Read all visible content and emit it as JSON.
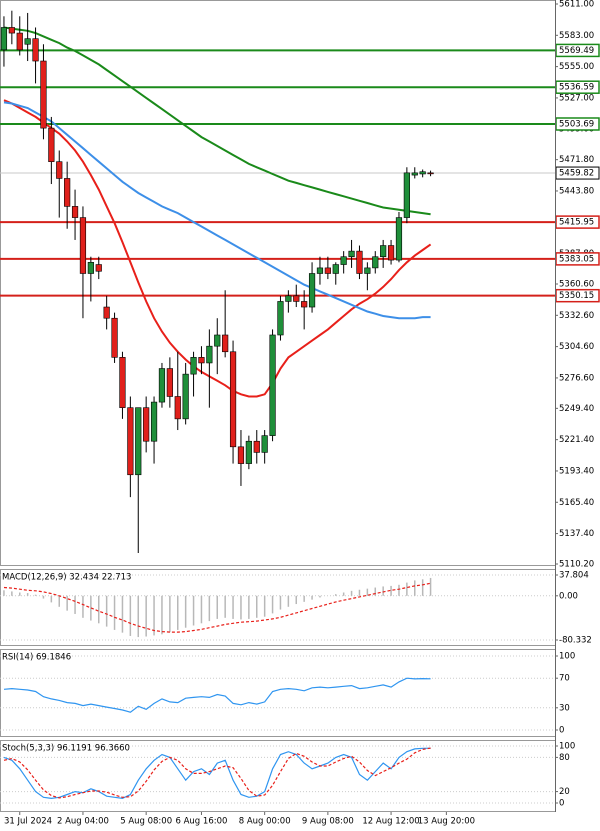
{
  "chart_data": [
    {
      "type": "candlestick",
      "ylim": [
        5110.2,
        5611
      ],
      "yticks": [
        {
          "value": 5611,
          "label": "5611.00"
        },
        {
          "value": 5583,
          "label": "5583.00"
        },
        {
          "value": 5555,
          "label": "5555.00"
        },
        {
          "value": 5527,
          "label": "5527.00"
        },
        {
          "value": 5499,
          "label": "5499.00"
        },
        {
          "value": 5471.8,
          "label": "5471.80"
        },
        {
          "value": 5443.8,
          "label": "5443.80"
        },
        {
          "value": 5387.8,
          "label": "5387.80"
        },
        {
          "value": 5360.6,
          "label": "5360.60"
        },
        {
          "value": 5332.6,
          "label": "5332.60"
        },
        {
          "value": 5304.6,
          "label": "5304.60"
        },
        {
          "value": 5276.6,
          "label": "5276.60"
        },
        {
          "value": 5249.4,
          "label": "5249.40"
        },
        {
          "value": 5221.4,
          "label": "5221.40"
        },
        {
          "value": 5193.4,
          "label": "5193.40"
        },
        {
          "value": 5165.4,
          "label": "5165.40"
        },
        {
          "value": 5137.4,
          "label": "5137.40"
        },
        {
          "value": 5110.2,
          "label": "5110.20"
        }
      ],
      "up_color": "#1f8f3a",
      "down_color": "#e0201b",
      "open": [
        5570,
        5590,
        5585,
        5575,
        5580,
        5560,
        5500,
        5470,
        5455,
        5430,
        5420,
        5370,
        5378,
        5340,
        5330,
        5295,
        5250,
        5190,
        5250,
        5220,
        5255,
        5285,
        5260,
        5240,
        5280,
        5295,
        5290,
        5305,
        5315,
        5300,
        5215,
        5200,
        5220,
        5210,
        5225,
        5315,
        5345,
        5350,
        5345,
        5340,
        5370,
        5375,
        5370,
        5378,
        5385,
        5390,
        5370,
        5375,
        5385,
        5395,
        5382,
        5420,
        5458,
        5459,
        5460
      ],
      "high": [
        5600,
        5605,
        5600,
        5603,
        5590,
        5575,
        5510,
        5480,
        5470,
        5445,
        5430,
        5385,
        5385,
        5350,
        5335,
        5300,
        5260,
        5250,
        5260,
        5260,
        5290,
        5295,
        5300,
        5290,
        5300,
        5305,
        5320,
        5330,
        5355,
        5310,
        5230,
        5225,
        5230,
        5230,
        5320,
        5350,
        5355,
        5360,
        5355,
        5380,
        5385,
        5385,
        5380,
        5390,
        5400,
        5395,
        5380,
        5390,
        5400,
        5400,
        5425,
        5465,
        5465,
        5463,
        5462
      ],
      "low": [
        5555,
        5575,
        5565,
        5560,
        5540,
        5490,
        5450,
        5420,
        5410,
        5400,
        5330,
        5345,
        5365,
        5320,
        5290,
        5240,
        5170,
        5120,
        5210,
        5200,
        5250,
        5250,
        5230,
        5235,
        5260,
        5280,
        5250,
        5280,
        5295,
        5200,
        5180,
        5195,
        5200,
        5200,
        5220,
        5310,
        5335,
        5340,
        5320,
        5335,
        5360,
        5365,
        5360,
        5370,
        5375,
        5365,
        5355,
        5370,
        5375,
        5378,
        5380,
        5415,
        5455,
        5456,
        5457
      ],
      "close": [
        5590,
        5585,
        5570,
        5580,
        5560,
        5500,
        5470,
        5455,
        5430,
        5420,
        5370,
        5380,
        5372,
        5330,
        5295,
        5250,
        5190,
        5250,
        5220,
        5255,
        5285,
        5260,
        5240,
        5280,
        5295,
        5290,
        5305,
        5315,
        5300,
        5215,
        5200,
        5220,
        5210,
        5225,
        5315,
        5345,
        5350,
        5345,
        5340,
        5370,
        5375,
        5370,
        5378,
        5385,
        5390,
        5370,
        5375,
        5385,
        5395,
        5382,
        5420,
        5460,
        5460,
        5461,
        5459.82
      ],
      "series": [
        {
          "color": "#1a8a1a",
          "values": [
            5590,
            5589,
            5588,
            5587,
            5585,
            5582,
            5579,
            5576,
            5572,
            5569,
            5565,
            5561,
            5557,
            5552,
            5547,
            5542,
            5537,
            5532,
            5527,
            5522,
            5517,
            5512,
            5507,
            5502,
            5497,
            5492,
            5488,
            5484,
            5480,
            5476,
            5472,
            5468,
            5465,
            5462,
            5459,
            5456,
            5453,
            5451,
            5449,
            5447,
            5445,
            5443,
            5441,
            5439,
            5437,
            5435,
            5433,
            5431,
            5429,
            5428,
            5427,
            5426,
            5425,
            5424,
            5423
          ]
        },
        {
          "color": "#e8201a",
          "values": [
            5525,
            5522,
            5518,
            5514,
            5510,
            5505,
            5500,
            5495,
            5488,
            5480,
            5470,
            5458,
            5445,
            5430,
            5415,
            5398,
            5380,
            5362,
            5345,
            5330,
            5318,
            5308,
            5300,
            5293,
            5287,
            5282,
            5278,
            5274,
            5270,
            5265,
            5262,
            5260,
            5260,
            5262,
            5272,
            5285,
            5295,
            5300,
            5305,
            5310,
            5315,
            5320,
            5326,
            5332,
            5338,
            5343,
            5347,
            5352,
            5358,
            5365,
            5373,
            5380,
            5386,
            5391,
            5396
          ]
        },
        {
          "color": "#3d8fe8",
          "values": [
            5523,
            5522,
            5520,
            5518,
            5514,
            5510,
            5506,
            5500,
            5494,
            5488,
            5482,
            5476,
            5470,
            5464,
            5458,
            5452,
            5447,
            5442,
            5438,
            5434,
            5430,
            5427,
            5424,
            5420,
            5416,
            5412,
            5408,
            5404,
            5400,
            5396,
            5392,
            5388,
            5384,
            5380,
            5376,
            5372,
            5368,
            5364,
            5360,
            5357,
            5354,
            5351,
            5348,
            5345,
            5342,
            5339,
            5336,
            5334,
            5332,
            5331,
            5330,
            5330,
            5330,
            5331,
            5331
          ]
        }
      ],
      "levels": [
        {
          "value": 5569.49,
          "color": "#1a8a1a"
        },
        {
          "value": 5536.59,
          "color": "#1a8a1a"
        },
        {
          "value": 5503.69,
          "color": "#1a8a1a"
        },
        {
          "value": 5415.95,
          "color": "#d4201a"
        },
        {
          "value": 5383.05,
          "color": "#d4201a"
        },
        {
          "value": 5350.15,
          "color": "#d4201a"
        }
      ],
      "current_price": 5459.82
    },
    {
      "type": "macd",
      "title": "MACD(12,26,9) 32.434 22.713",
      "ylim": [
        -80.332,
        37.804
      ],
      "yticks": [
        37.804,
        {
          "value": 0,
          "label": "0.00"
        },
        -80.332
      ],
      "series": [
        {
          "style": "histogram",
          "color": "#b8b8b8",
          "values": [
            10,
            8,
            6,
            5,
            2,
            -5,
            -12,
            -20,
            -27,
            -33,
            -40,
            -45,
            -50,
            -56,
            -62,
            -67,
            -73,
            -75,
            -74,
            -72,
            -70,
            -66,
            -62,
            -58,
            -54,
            -50,
            -46,
            -42,
            -40,
            -42,
            -43,
            -42,
            -40,
            -38,
            -32,
            -25,
            -20,
            -15,
            -11,
            -7,
            -3,
            0,
            3,
            6,
            9,
            11,
            13,
            15,
            17,
            18,
            20,
            24,
            28,
            30,
            32.434
          ]
        },
        {
          "style": "dashed",
          "color": "#e8201a",
          "values": [
            15,
            14,
            12,
            10,
            9,
            7,
            4,
            0,
            -5,
            -10,
            -16,
            -22,
            -28,
            -33,
            -39,
            -44,
            -50,
            -55,
            -59,
            -63,
            -65,
            -66,
            -66,
            -65,
            -63,
            -61,
            -58,
            -55,
            -52,
            -50,
            -48,
            -47,
            -46,
            -44,
            -42,
            -39,
            -35,
            -31,
            -27,
            -23,
            -19,
            -15,
            -11,
            -8,
            -5,
            -2,
            1,
            4,
            7,
            10,
            12,
            15,
            18,
            20,
            22.713
          ]
        }
      ]
    },
    {
      "type": "line",
      "title": "RSI(14) 69.1846",
      "ylim": [
        0,
        100
      ],
      "yticks": [
        100,
        70,
        30,
        0
      ],
      "series": [
        {
          "style": "solid",
          "color": "#2f95f0",
          "values": [
            55,
            56,
            55,
            54,
            52,
            45,
            42,
            40,
            37,
            36,
            33,
            35,
            33,
            31,
            29,
            27,
            24,
            32,
            28,
            36,
            42,
            38,
            37,
            43,
            44,
            45,
            44,
            48,
            46,
            36,
            34,
            37,
            35,
            38,
            52,
            55,
            56,
            55,
            53,
            57,
            58,
            57,
            58,
            59,
            60,
            56,
            57,
            59,
            61,
            58,
            65,
            70,
            69,
            69.5,
            69.1846
          ]
        }
      ]
    },
    {
      "type": "line",
      "title": "Stoch(5,3,3) 96.1191 96.3660",
      "ylim": [
        0,
        100
      ],
      "yticks": [
        100,
        80,
        20,
        0
      ],
      "series": [
        {
          "style": "solid",
          "color": "#2f95f0",
          "values": [
            80,
            75,
            60,
            40,
            20,
            10,
            8,
            10,
            15,
            20,
            18,
            25,
            20,
            12,
            10,
            8,
            15,
            40,
            60,
            75,
            85,
            80,
            60,
            40,
            55,
            60,
            50,
            70,
            75,
            40,
            15,
            10,
            12,
            20,
            60,
            85,
            90,
            85,
            70,
            60,
            65,
            70,
            80,
            85,
            80,
            50,
            40,
            55,
            70,
            60,
            80,
            90,
            95,
            96,
            96.1191
          ]
        },
        {
          "style": "dashed",
          "color": "#e8201a",
          "values": [
            75,
            78,
            72,
            58,
            40,
            23,
            13,
            9,
            11,
            15,
            18,
            21,
            21,
            19,
            14,
            10,
            11,
            21,
            38,
            58,
            73,
            80,
            75,
            60,
            52,
            52,
            55,
            60,
            65,
            62,
            43,
            22,
            12,
            14,
            31,
            55,
            78,
            87,
            82,
            72,
            65,
            65,
            72,
            78,
            82,
            72,
            57,
            48,
            55,
            62,
            70,
            77,
            88,
            94,
            96.366
          ]
        }
      ],
      "xlim": [
        -0.5,
        69.75
      ],
      "xticks": [
        {
          "value": 2,
          "label": "31 Jul 2024"
        },
        {
          "value": 10,
          "label": "2 Aug 04:00"
        },
        {
          "value": 18,
          "label": "5 Aug 08:00"
        },
        {
          "value": 25,
          "label": "6 Aug 16:00"
        },
        {
          "value": 33,
          "label": "8 Aug 00:00"
        },
        {
          "value": 41,
          "label": "9 Aug 08:00"
        },
        {
          "value": 49,
          "label": "12 Aug 12:00"
        },
        {
          "value": 56,
          "label": "13 Aug 20:00"
        }
      ]
    }
  ]
}
